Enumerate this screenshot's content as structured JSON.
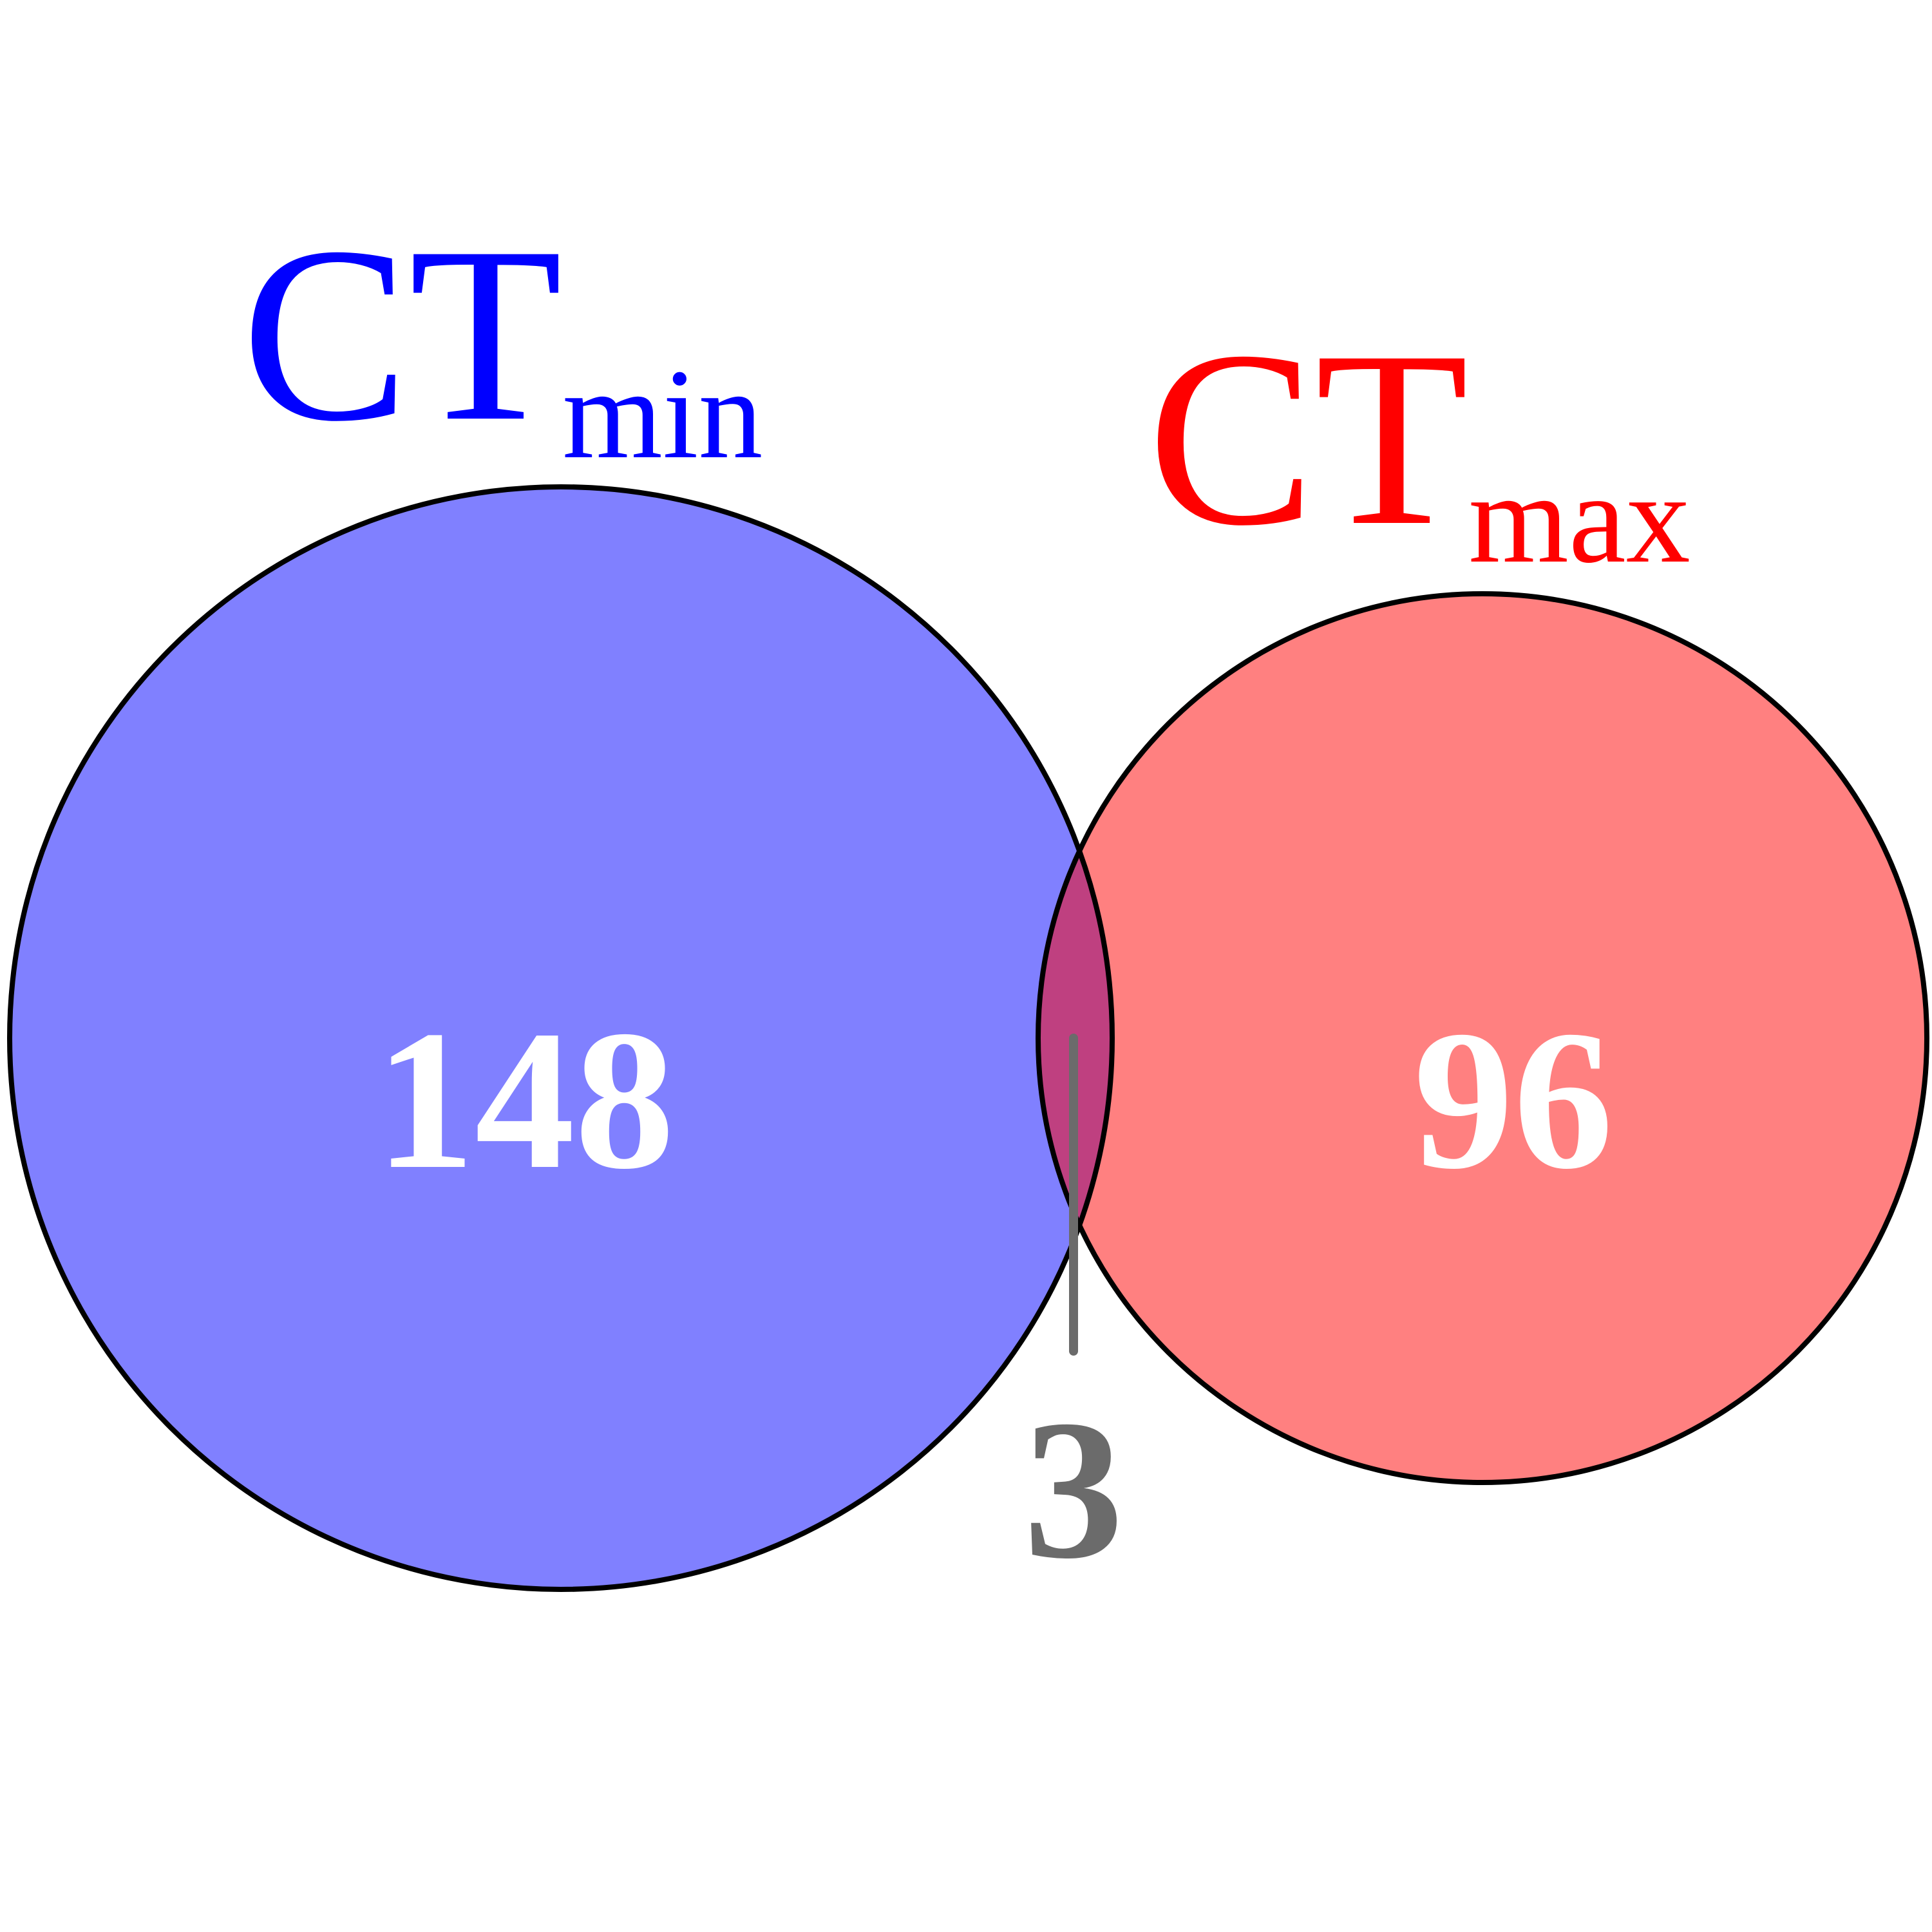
{
  "sets": [
    {
      "label_main": "CT",
      "label_sub": "min",
      "label_color": "#0000ff",
      "fill_color": "#8080ff",
      "count": "148"
    },
    {
      "label_main": "CT",
      "label_sub": "max",
      "label_color": "#ff0000",
      "fill_color": "#ff8080",
      "count": "96"
    }
  ],
  "intersection": {
    "count": "3",
    "fill_color": "#bf4080",
    "label_color": "#6b6b6b"
  },
  "count_text_color": "#ffffff",
  "outline_color": "#000000"
}
